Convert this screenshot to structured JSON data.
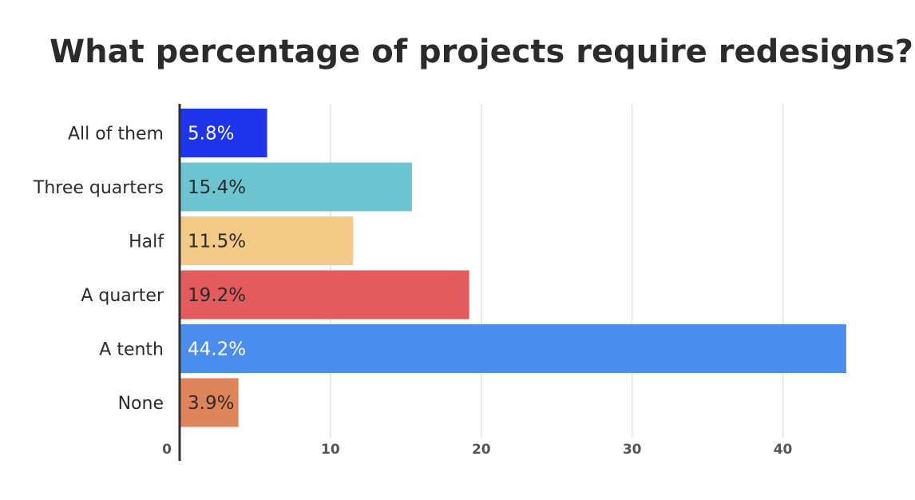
{
  "chart_data": {
    "type": "bar",
    "orientation": "horizontal",
    "title": "What percentage of projects require redesigns?",
    "xlabel": "",
    "ylabel": "",
    "xlim": [
      0,
      45
    ],
    "x_ticks": [
      0,
      10,
      20,
      30,
      40
    ],
    "grid": true,
    "categories": [
      "All of them",
      "Three quarters",
      "Half",
      "A quarter",
      "A tenth",
      "None"
    ],
    "values": [
      5.8,
      15.4,
      11.5,
      19.2,
      44.2,
      3.9
    ],
    "data_labels": [
      "5.8%",
      "15.4%",
      "11.5%",
      "19.2%",
      "44.2%",
      "3.9%"
    ],
    "colors": [
      "#1f35eb",
      "#6cc5d0",
      "#f2c985",
      "#e45b5d",
      "#4b8ded",
      "#e0855b"
    ],
    "label_colors": [
      "#ffffff",
      "#2b2b2b",
      "#2b2b2b",
      "#2b2b2b",
      "#ffffff",
      "#2b2b2b"
    ]
  }
}
